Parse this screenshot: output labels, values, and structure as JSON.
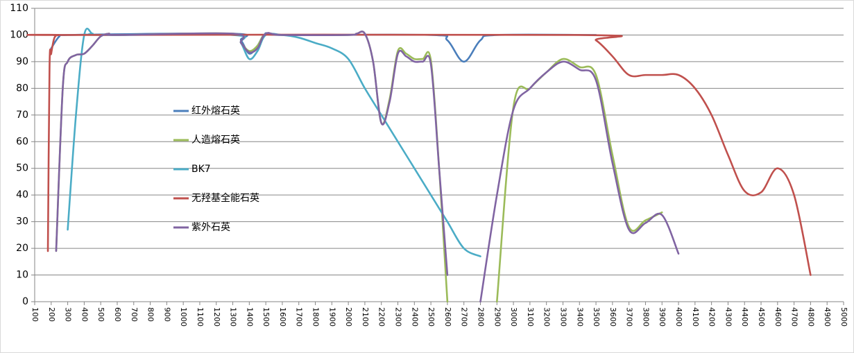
{
  "chart_data": {
    "type": "line",
    "xlim": [
      100,
      5000
    ],
    "xticks": [
      100,
      200,
      300,
      400,
      500,
      600,
      700,
      800,
      900,
      1000,
      1100,
      1200,
      1300,
      1400,
      1500,
      1600,
      1700,
      1800,
      1900,
      2000,
      2100,
      2200,
      2300,
      2400,
      2500,
      2600,
      2700,
      2800,
      2900,
      3000,
      3100,
      3200,
      3300,
      3400,
      3500,
      3600,
      3700,
      3800,
      3900,
      4000,
      4100,
      4200,
      4300,
      4400,
      4500,
      4600,
      4700,
      4800,
      4900,
      5000
    ],
    "ylim": [
      0,
      110
    ],
    "yticks": [
      0,
      10,
      20,
      30,
      40,
      50,
      60,
      70,
      80,
      90,
      100,
      110
    ],
    "grid": true,
    "legend": "inside-left",
    "series": [
      {
        "name": "红外熔石英",
        "color": "#4a7ebb",
        "x": [
          200,
          250,
          300,
          1300,
          1350,
          1400,
          1450,
          1500,
          1600,
          2500,
          2600,
          2700,
          2800,
          2900,
          3500
        ],
        "values": [
          95,
          99.5,
          100,
          100.5,
          98,
          93,
          96,
          100.5,
          100,
          100,
          98,
          90,
          98,
          100,
          100
        ]
      },
      {
        "name": "人造熔石英",
        "color": "#9bbb59",
        "x": [
          230,
          270,
          300,
          350,
          400,
          450,
          500,
          550,
          600,
          1300,
          1350,
          1400,
          1450,
          1500,
          1600,
          2000,
          2050,
          2100,
          2150,
          2200,
          2250,
          2300,
          2350,
          2400,
          2450,
          2500,
          2550,
          2600,
          2700,
          2900,
          3000,
          3100,
          3200,
          3300,
          3400,
          3500,
          3600,
          3700,
          3800,
          3900
        ],
        "values": [
          19,
          80,
          90,
          92.5,
          93,
          96,
          99.5,
          100.5,
          100,
          100.5,
          97,
          94,
          96,
          100.5,
          100,
          100,
          100.5,
          100.5,
          90,
          67,
          76,
          94,
          93,
          91,
          91,
          90.5,
          50,
          0,
          null,
          0,
          73,
          80,
          86,
          91,
          88,
          85,
          55,
          28,
          30.5,
          33.5
        ]
      },
      {
        "name": "BK7",
        "color": "#4bacc6",
        "x": [
          300,
          350,
          400,
          450,
          500,
          1300,
          1350,
          1400,
          1450,
          1500,
          1600,
          1700,
          1800,
          1900,
          2000,
          2100,
          2200,
          2300,
          2400,
          2500,
          2600,
          2700,
          2800
        ],
        "values": [
          27,
          70,
          100,
          100.5,
          100,
          100,
          97,
          91,
          94,
          100,
          100,
          99,
          97,
          95,
          91,
          80,
          70,
          60,
          50,
          40,
          30,
          20,
          17
        ]
      },
      {
        "name": "无羟基全能石英",
        "color": "#c0504d",
        "x": [
          180,
          190,
          200,
          220,
          250,
          300,
          3400,
          3500,
          3600,
          3700,
          3800,
          3900,
          4000,
          4100,
          4200,
          4300,
          4400,
          4500,
          4600,
          4700,
          4800
        ],
        "values": [
          19,
          88,
          93,
          99,
          100,
          100,
          100,
          98,
          92,
          85,
          85,
          85,
          85,
          80,
          70,
          55,
          41.5,
          41,
          50,
          40,
          10
        ]
      },
      {
        "name": "紫外石英",
        "color": "#8064a2",
        "x": [
          230,
          270,
          300,
          350,
          400,
          450,
          500,
          550,
          600,
          1300,
          1350,
          1400,
          1450,
          1500,
          1600,
          2000,
          2050,
          2100,
          2150,
          2200,
          2250,
          2300,
          2350,
          2400,
          2450,
          2500,
          2550,
          2600,
          2700,
          2800,
          2900,
          3000,
          3100,
          3200,
          3300,
          3400,
          3500,
          3600,
          3700,
          3800,
          3900,
          4000
        ],
        "values": [
          19,
          80,
          90,
          92.5,
          93,
          96,
          99.5,
          100.5,
          100,
          100.5,
          97,
          93.5,
          95,
          100.5,
          100,
          100,
          100.5,
          100.5,
          90,
          67,
          75,
          93,
          92,
          90,
          90,
          89,
          50,
          10,
          null,
          0,
          40,
          72,
          80,
          86,
          90,
          87,
          83,
          52,
          27,
          29.5,
          32.5,
          18
        ]
      }
    ]
  }
}
